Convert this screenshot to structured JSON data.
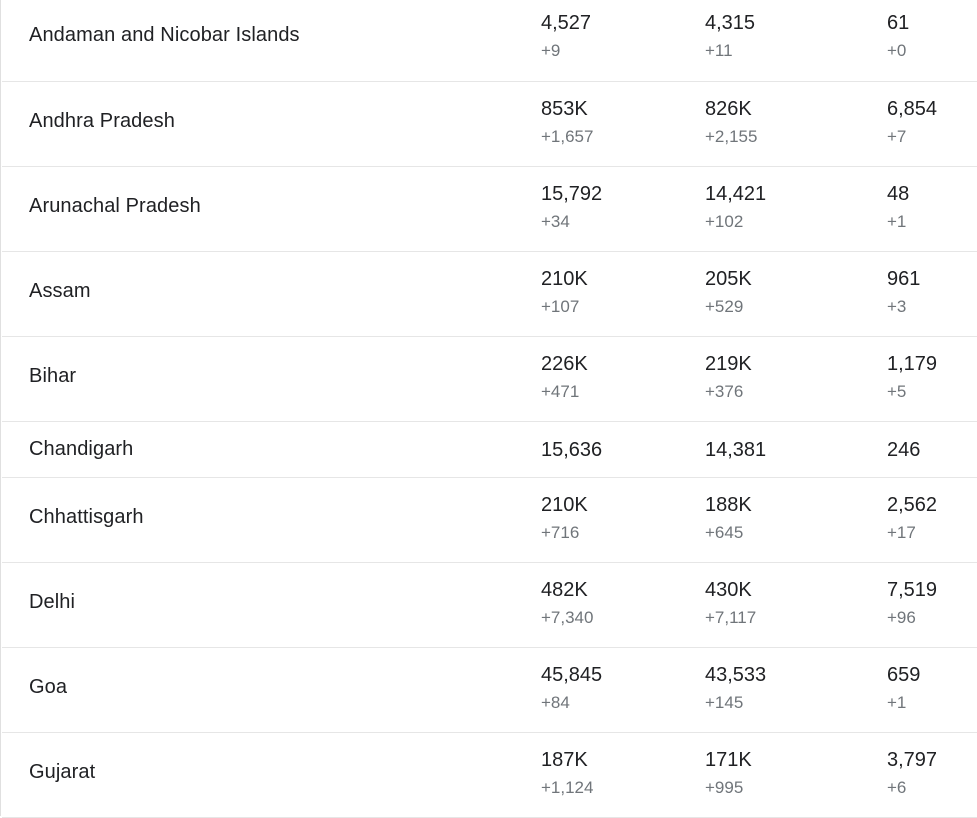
{
  "rows": [
    {
      "name": "Andaman and Nicobar Islands",
      "cases": "4,527",
      "cases_delta": "+9",
      "recovered": "4,315",
      "recovered_delta": "+11",
      "deaths": "61",
      "deaths_delta": "+0"
    },
    {
      "name": "Andhra Pradesh",
      "cases": "853K",
      "cases_delta": "+1,657",
      "recovered": "826K",
      "recovered_delta": "+2,155",
      "deaths": "6,854",
      "deaths_delta": "+7"
    },
    {
      "name": "Arunachal Pradesh",
      "cases": "15,792",
      "cases_delta": "+34",
      "recovered": "14,421",
      "recovered_delta": "+102",
      "deaths": "48",
      "deaths_delta": "+1"
    },
    {
      "name": "Assam",
      "cases": "210K",
      "cases_delta": "+107",
      "recovered": "205K",
      "recovered_delta": "+529",
      "deaths": "961",
      "deaths_delta": "+3"
    },
    {
      "name": "Bihar",
      "cases": "226K",
      "cases_delta": "+471",
      "recovered": "219K",
      "recovered_delta": "+376",
      "deaths": "1,179",
      "deaths_delta": "+5"
    },
    {
      "name": "Chandigarh",
      "cases": "15,636",
      "recovered": "14,381",
      "deaths": "246"
    },
    {
      "name": "Chhattisgarh",
      "cases": "210K",
      "cases_delta": "+716",
      "recovered": "188K",
      "recovered_delta": "+645",
      "deaths": "2,562",
      "deaths_delta": "+17"
    },
    {
      "name": "Delhi",
      "cases": "482K",
      "cases_delta": "+7,340",
      "recovered": "430K",
      "recovered_delta": "+7,117",
      "deaths": "7,519",
      "deaths_delta": "+96"
    },
    {
      "name": "Goa",
      "cases": "45,845",
      "cases_delta": "+84",
      "recovered": "43,533",
      "recovered_delta": "+145",
      "deaths": "659",
      "deaths_delta": "+1"
    },
    {
      "name": "Gujarat",
      "cases": "187K",
      "cases_delta": "+1,124",
      "recovered": "171K",
      "recovered_delta": "+995",
      "deaths": "3,797",
      "deaths_delta": "+6"
    }
  ]
}
